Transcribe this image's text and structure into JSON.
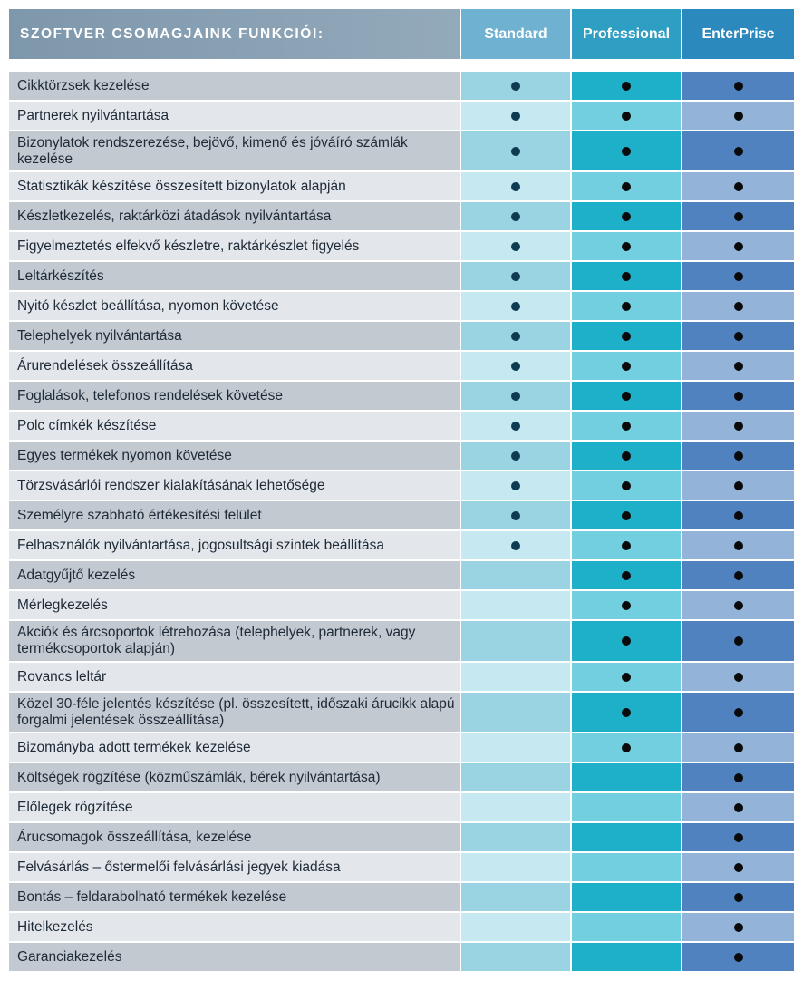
{
  "header": {
    "title": "SZOFTVER CSOMAGJAINK FUNKCIÓI:",
    "standard": "Standard",
    "professional": "Professional",
    "enterprise": "EnterPrise"
  },
  "features": [
    {
      "label": "Cikktörzsek kezelése",
      "standard": true,
      "professional": true,
      "enterprise": true
    },
    {
      "label": "Partnerek nyilvántartása",
      "standard": true,
      "professional": true,
      "enterprise": true
    },
    {
      "label": "Bizonylatok rendszerezése, bejövő, kimenő és jóváíró számlák kezelése",
      "standard": true,
      "professional": true,
      "enterprise": true
    },
    {
      "label": "Statisztikák készítése összesített bizonylatok alapján",
      "standard": true,
      "professional": true,
      "enterprise": true
    },
    {
      "label": "Készletkezelés, raktárközi átadások nyilvántartása",
      "standard": true,
      "professional": true,
      "enterprise": true
    },
    {
      "label": "Figyelmeztetés elfekvő készletre, raktárkészlet figyelés",
      "standard": true,
      "professional": true,
      "enterprise": true
    },
    {
      "label": "Leltárkészítés",
      "standard": true,
      "professional": true,
      "enterprise": true
    },
    {
      "label": "Nyitó készlet beállítása, nyomon követése",
      "standard": true,
      "professional": true,
      "enterprise": true
    },
    {
      "label": "Telephelyek nyilvántartása",
      "standard": true,
      "professional": true,
      "enterprise": true
    },
    {
      "label": "Árurendelések összeállítása",
      "standard": true,
      "professional": true,
      "enterprise": true
    },
    {
      "label": "Foglalások, telefonos rendelések követése",
      "standard": true,
      "professional": true,
      "enterprise": true
    },
    {
      "label": "Polc címkék készítése",
      "standard": true,
      "professional": true,
      "enterprise": true
    },
    {
      "label": "Egyes termékek nyomon követése",
      "standard": true,
      "professional": true,
      "enterprise": true
    },
    {
      "label": "Törzsvásárlói rendszer kialakításának lehetősége",
      "standard": true,
      "professional": true,
      "enterprise": true
    },
    {
      "label": "Személyre szabható értékesítési felület",
      "standard": true,
      "professional": true,
      "enterprise": true
    },
    {
      "label": "Felhasználók nyilvántartása, jogosultsági szintek beállítása",
      "standard": true,
      "professional": true,
      "enterprise": true
    },
    {
      "label": "Adatgyűjtő kezelés",
      "standard": false,
      "professional": true,
      "enterprise": true
    },
    {
      "label": "Mérlegkezelés",
      "standard": false,
      "professional": true,
      "enterprise": true
    },
    {
      "label": "Akciók és árcsoportok létrehozása (telephelyek, partnerek, vagy termékcsoportok alapján)",
      "standard": false,
      "professional": true,
      "enterprise": true
    },
    {
      "label": "Rovancs leltár",
      "standard": false,
      "professional": true,
      "enterprise": true
    },
    {
      "label": "Közel 30-féle jelentés készítése (pl. összesített, időszaki árucikk alapú forgalmi jelentések összeállítása)",
      "standard": false,
      "professional": true,
      "enterprise": true
    },
    {
      "label": "Bizományba adott termékek kezelése",
      "standard": false,
      "professional": true,
      "enterprise": true
    },
    {
      "label": "Költségek rögzítése (közműszámlák, bérek nyilvántartása)",
      "standard": false,
      "professional": false,
      "enterprise": true
    },
    {
      "label": "Előlegek rögzítése",
      "standard": false,
      "professional": false,
      "enterprise": true
    },
    {
      "label": "Árucsomagok összeállítása, kezelése",
      "standard": false,
      "professional": false,
      "enterprise": true
    },
    {
      "label": "Felvásárlás – őstermelői felvásárlási jegyek kiadása",
      "standard": false,
      "professional": false,
      "enterprise": true
    },
    {
      "label": "Bontás – feldarabolható termékek kezelése",
      "standard": false,
      "professional": false,
      "enterprise": true
    },
    {
      "label": "Hitelkezelés",
      "standard": false,
      "professional": false,
      "enterprise": true
    },
    {
      "label": "Garanciakezelés",
      "standard": false,
      "professional": false,
      "enterprise": true
    }
  ]
}
